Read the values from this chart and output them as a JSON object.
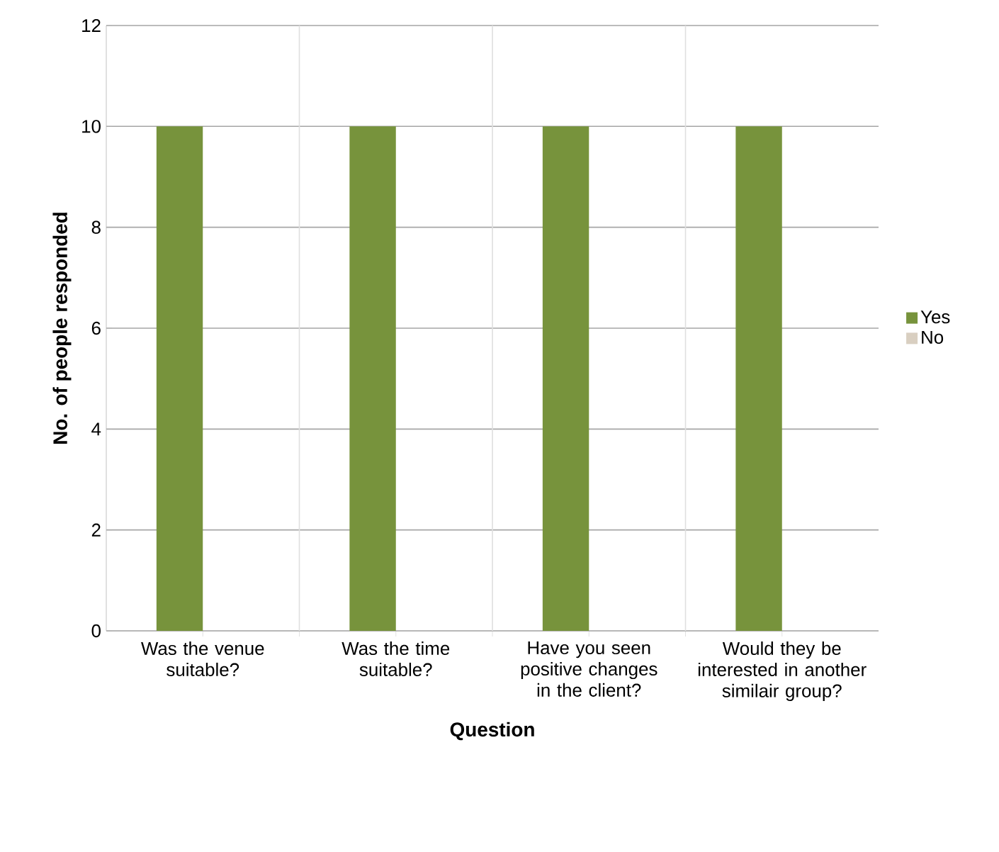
{
  "chart_data": {
    "type": "bar",
    "categories": [
      "Was the venue suitable?",
      "Was the time suitable?",
      "Have you seen positive changes in the client?",
      "Would they be interested in another similair group?"
    ],
    "series": [
      {
        "name": "Yes",
        "color": "#77933c",
        "values": [
          10,
          10,
          10,
          10
        ]
      },
      {
        "name": "No",
        "color": "#d9cfc1",
        "values": [
          0,
          0,
          0,
          0
        ]
      }
    ],
    "xlabel": "Question",
    "ylabel": "No. of people responded",
    "ylim": [
      0,
      12
    ],
    "yticks": [
      0,
      2,
      4,
      6,
      8,
      10,
      12
    ],
    "grid": "y",
    "legend": "right"
  }
}
